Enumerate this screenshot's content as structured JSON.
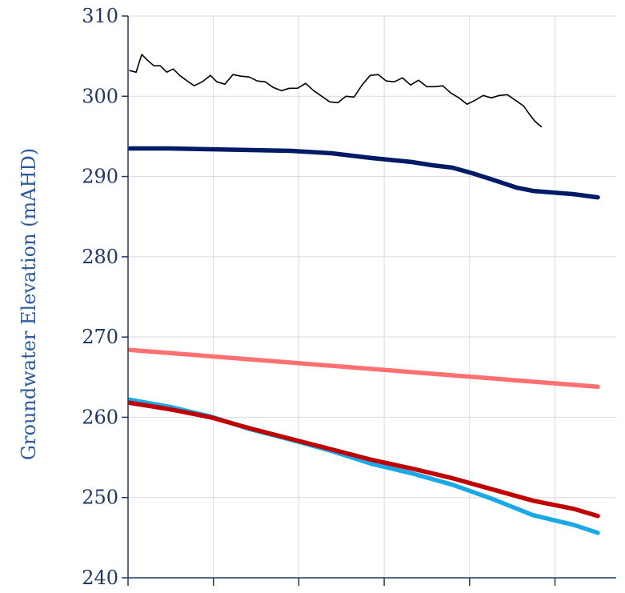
{
  "chart_data": {
    "type": "line",
    "title": "",
    "xlabel": "",
    "ylabel": "Groundwater Elevation (mAHD)",
    "ylim": [
      240,
      310
    ],
    "yticks": [
      240,
      250,
      260,
      270,
      280,
      290,
      300,
      310
    ],
    "xlim": [
      0,
      5.8
    ],
    "xtick_count": 6,
    "grid": true,
    "legend": "none",
    "series": [
      {
        "color": "#000000",
        "line_width": 1.6,
        "x": [
          0,
          0.08,
          0.15,
          0.22,
          0.3,
          0.38,
          0.46,
          0.54,
          0.62,
          0.7,
          0.8,
          0.9,
          1.0,
          1.08,
          1.18,
          1.28,
          1.38,
          1.48,
          1.58,
          1.68,
          1.78,
          1.88,
          1.98,
          2.08,
          2.18,
          2.28,
          2.38,
          2.48,
          2.58,
          2.68,
          2.78,
          2.88,
          2.98,
          3.08,
          3.18,
          3.28,
          3.38,
          3.48,
          3.58,
          3.68,
          3.78,
          3.88,
          3.98,
          4.08,
          4.18,
          4.28,
          4.38,
          4.48,
          4.58,
          4.68,
          4.78,
          4.88,
          4.95,
          5.02,
          5.1
        ],
        "values": [
          303.2,
          303.0,
          305.2,
          304.5,
          303.8,
          303.8,
          303.0,
          303.4,
          302.6,
          302.0,
          301.3,
          301.8,
          302.6,
          301.8,
          301.5,
          302.7,
          302.5,
          302.4,
          301.9,
          301.8,
          301.1,
          300.7,
          301.0,
          301.0,
          301.6,
          300.7,
          300.0,
          299.3,
          299.2,
          300.0,
          299.9,
          301.4,
          302.6,
          302.7,
          301.9,
          301.8,
          302.3,
          301.4,
          302.0,
          301.2,
          301.2,
          301.3,
          300.4,
          299.8,
          299.0,
          299.5,
          300.1,
          299.8,
          300.1,
          300.2,
          299.5,
          298.8,
          297.8,
          296.9,
          296.2
        ]
      },
      {
        "color": "#001a66",
        "line_width": 5.5,
        "x": [
          0,
          0.5,
          1.0,
          1.5,
          2.0,
          2.5,
          3.0,
          3.5,
          3.75,
          4.0,
          4.25,
          4.5,
          4.8,
          5.0,
          5.5,
          5.8
        ],
        "values": [
          293.5,
          293.5,
          293.4,
          293.3,
          293.2,
          292.9,
          292.3,
          291.8,
          291.4,
          291.1,
          290.4,
          289.6,
          288.6,
          288.2,
          287.8,
          287.4
        ]
      },
      {
        "color": "#ff7070",
        "line_width": 5.5,
        "x": [
          0,
          5.8
        ],
        "values": [
          268.4,
          263.8
        ]
      },
      {
        "color": "#1aa9e6",
        "line_width": 5.5,
        "x": [
          0,
          0.5,
          1.0,
          1.5,
          2.0,
          2.5,
          3.0,
          3.5,
          4.0,
          4.5,
          5.0,
          5.5,
          5.8
        ],
        "values": [
          262.2,
          261.3,
          260.1,
          258.5,
          257.2,
          255.8,
          254.2,
          253.0,
          251.6,
          249.8,
          247.8,
          246.6,
          245.6
        ]
      },
      {
        "color": "#c00000",
        "line_width": 5.5,
        "x": [
          0,
          0.5,
          1.0,
          1.5,
          2.0,
          2.5,
          3.0,
          3.5,
          4.0,
          4.5,
          5.0,
          5.5,
          5.8
        ],
        "values": [
          261.8,
          261.0,
          260.0,
          258.6,
          257.3,
          256.0,
          254.7,
          253.6,
          252.4,
          251.0,
          249.6,
          248.6,
          247.7
        ]
      }
    ]
  }
}
